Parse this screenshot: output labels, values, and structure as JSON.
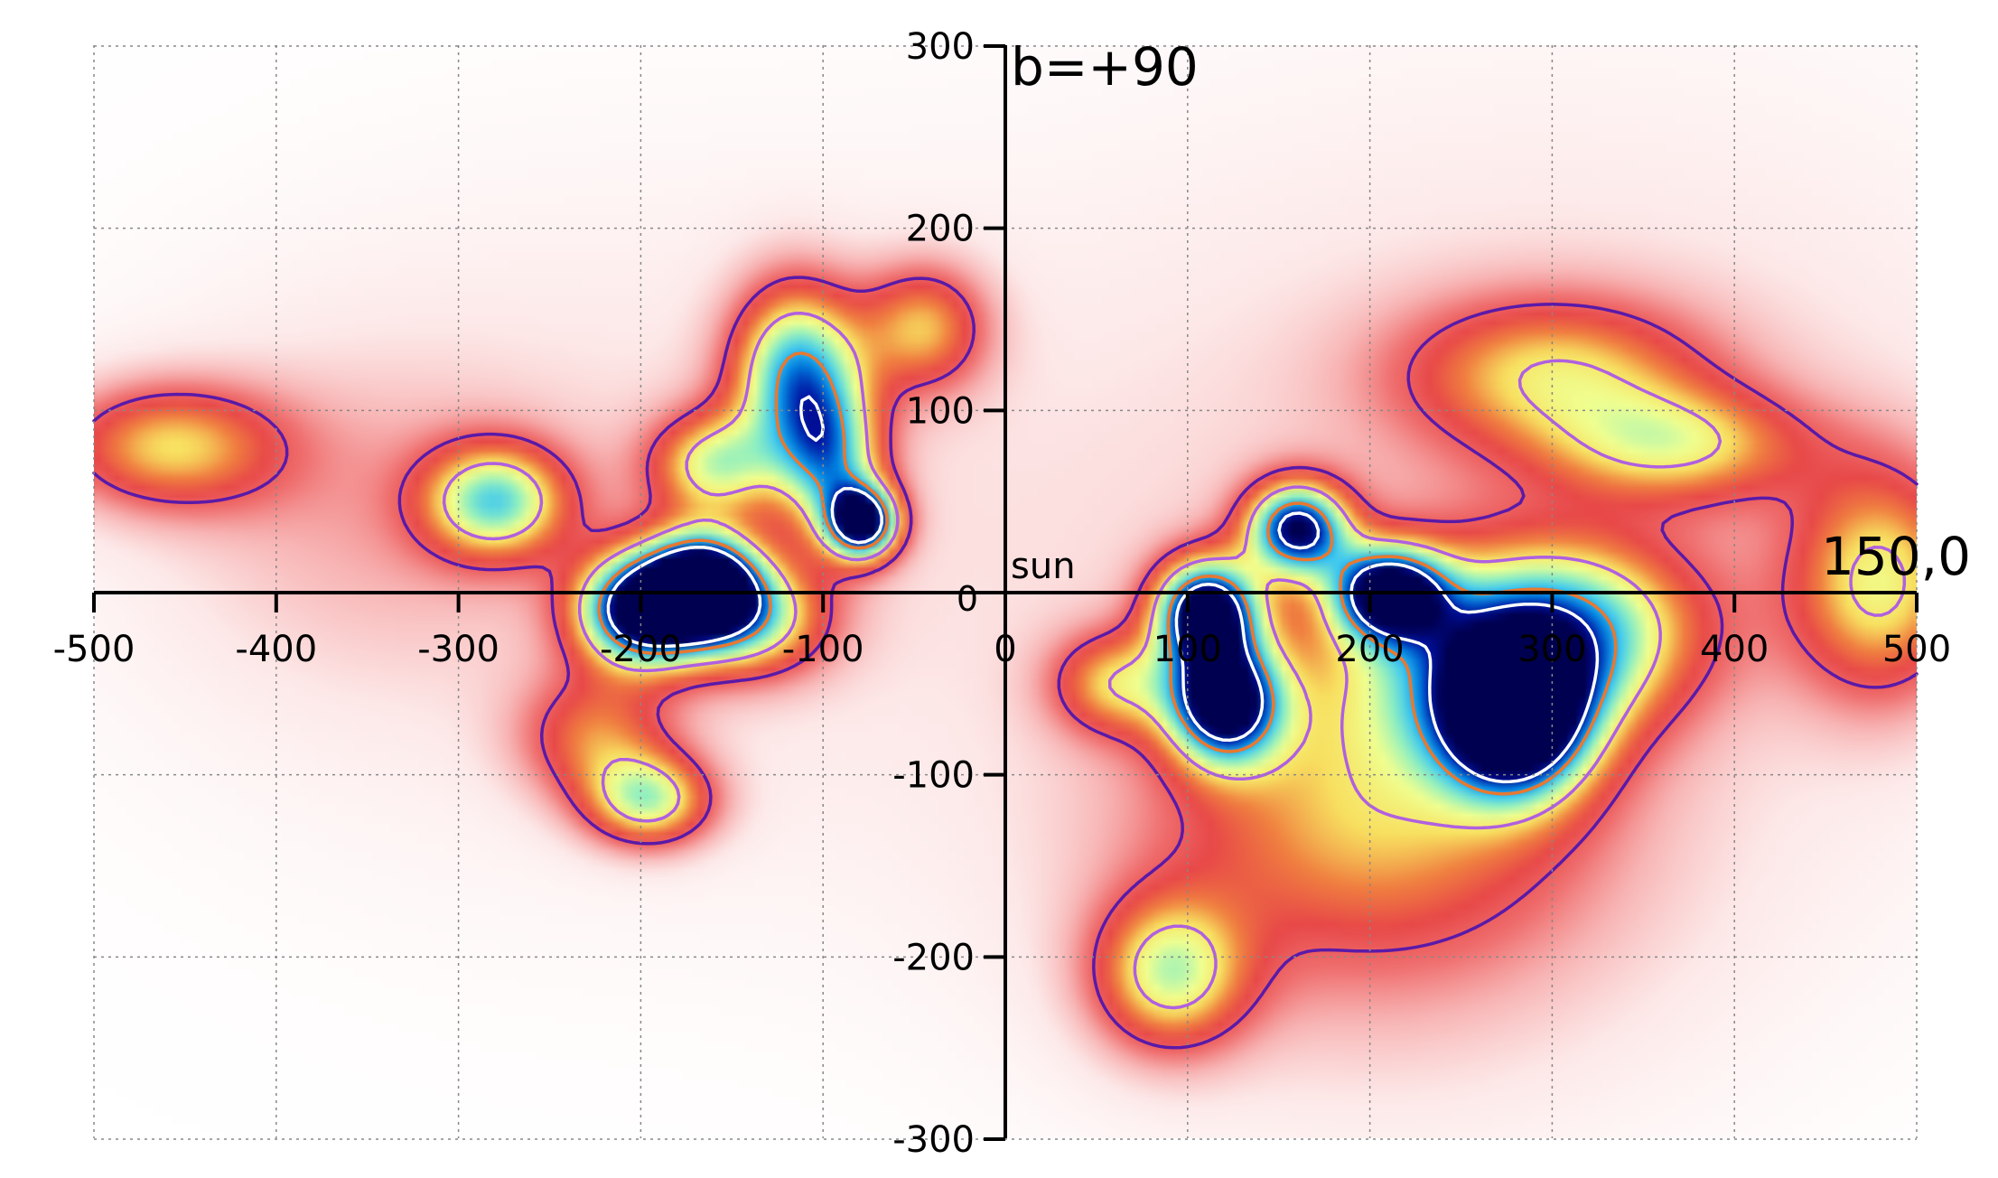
{
  "chart_data": {
    "type": "heatmap",
    "x": {
      "range": [
        -500,
        500
      ],
      "ticks": [
        -500,
        -400,
        -300,
        -200,
        -100,
        0,
        100,
        200,
        300,
        400,
        500
      ],
      "tick_labels": [
        "-500",
        "-400",
        "-300",
        "-200",
        "-100",
        "0",
        "100",
        "200",
        "300",
        "400",
        "500"
      ]
    },
    "y": {
      "range": [
        -300,
        300
      ],
      "ticks": [
        -300,
        -200,
        -100,
        0,
        100,
        200,
        300
      ],
      "tick_labels": [
        "-300",
        "-200",
        "-100",
        "0",
        "100",
        "200",
        "300"
      ]
    },
    "grid": true,
    "annotations": [
      {
        "text": "b=+90",
        "x": 0,
        "y": 300,
        "role": "top"
      },
      {
        "text": "sun",
        "x": 0,
        "y": 0,
        "role": "origin"
      },
      {
        "text": "0",
        "x": -30,
        "y": 0,
        "role": "origin-zero"
      },
      {
        "text": "150,0",
        "x": 500,
        "y": 0,
        "role": "right"
      }
    ],
    "blobs": [
      {
        "x": -460,
        "y": 80,
        "sx": 45,
        "sy": 25,
        "amp": 0.45
      },
      {
        "x": -355,
        "y": 45,
        "sx": 80,
        "sy": 65,
        "amp": 0.12
      },
      {
        "x": -280,
        "y": 50,
        "sx": 28,
        "sy": 22,
        "amp": 0.6
      },
      {
        "x": -200,
        "y": -10,
        "sx": 25,
        "sy": 22,
        "amp": 1.0
      },
      {
        "x": -165,
        "y": 5,
        "sx": 22,
        "sy": 20,
        "amp": 0.98
      },
      {
        "x": -140,
        "y": -15,
        "sx": 30,
        "sy": 22,
        "amp": 0.55
      },
      {
        "x": -225,
        "y": -80,
        "sx": 30,
        "sy": 25,
        "amp": 0.35
      },
      {
        "x": -195,
        "y": -115,
        "sx": 25,
        "sy": 18,
        "amp": 0.55
      },
      {
        "x": -160,
        "y": 70,
        "sx": 25,
        "sy": 20,
        "amp": 0.5
      },
      {
        "x": -115,
        "y": 120,
        "sx": 25,
        "sy": 35,
        "amp": 0.72
      },
      {
        "x": -95,
        "y": 70,
        "sx": 20,
        "sy": 30,
        "amp": 0.55
      },
      {
        "x": -78,
        "y": 38,
        "sx": 14,
        "sy": 14,
        "amp": 0.95
      },
      {
        "x": -45,
        "y": 145,
        "sx": 25,
        "sy": 25,
        "amp": 0.42
      },
      {
        "x": 110,
        "y": -10,
        "sx": 20,
        "sy": 20,
        "amp": 1.0
      },
      {
        "x": 120,
        "y": -60,
        "sx": 22,
        "sy": 24,
        "amp": 0.96
      },
      {
        "x": 160,
        "y": 35,
        "sx": 20,
        "sy": 18,
        "amp": 0.9
      },
      {
        "x": 210,
        "y": 0,
        "sx": 22,
        "sy": 18,
        "amp": 0.88
      },
      {
        "x": 280,
        "y": -70,
        "sx": 28,
        "sy": 30,
        "amp": 0.93
      },
      {
        "x": 310,
        "y": -20,
        "sx": 50,
        "sy": 35,
        "amp": 0.55
      },
      {
        "x": 250,
        "y": -40,
        "sx": 60,
        "sy": 40,
        "amp": 0.4
      },
      {
        "x": 200,
        "y": -120,
        "sx": 80,
        "sy": 55,
        "amp": 0.32
      },
      {
        "x": 90,
        "y": -210,
        "sx": 30,
        "sy": 30,
        "amp": 0.52
      },
      {
        "x": 300,
        "y": 120,
        "sx": 60,
        "sy": 30,
        "amp": 0.42
      },
      {
        "x": 370,
        "y": 80,
        "sx": 50,
        "sy": 22,
        "amp": 0.4
      },
      {
        "x": 480,
        "y": 5,
        "sx": 35,
        "sy": 45,
        "amp": 0.5
      },
      {
        "x": 60,
        "y": -50,
        "sx": 25,
        "sy": 20,
        "amp": 0.4
      },
      {
        "x": 300,
        "y": 50,
        "sx": 200,
        "sy": 150,
        "amp": 0.14
      },
      {
        "x": 200,
        "y": -180,
        "sx": 120,
        "sy": 80,
        "amp": 0.15
      },
      {
        "x": -200,
        "y": 30,
        "sx": 180,
        "sy": 130,
        "amp": 0.1
      }
    ],
    "contour_levels": [
      {
        "level": 0.3,
        "color": "#5a1aa8"
      },
      {
        "level": 0.55,
        "color": "#b060e0"
      },
      {
        "level": 0.82,
        "color": "#e87830"
      },
      {
        "level": 0.96,
        "color": "#ffffff"
      }
    ],
    "colormap": [
      "#ffffff",
      "#fde8e8",
      "#f8b4b4",
      "#f07070",
      "#e84848",
      "#f08040",
      "#f8e060",
      "#f0ff90",
      "#90f0c0",
      "#40c8f0",
      "#0080e0",
      "#0010a0",
      "#000050"
    ]
  }
}
